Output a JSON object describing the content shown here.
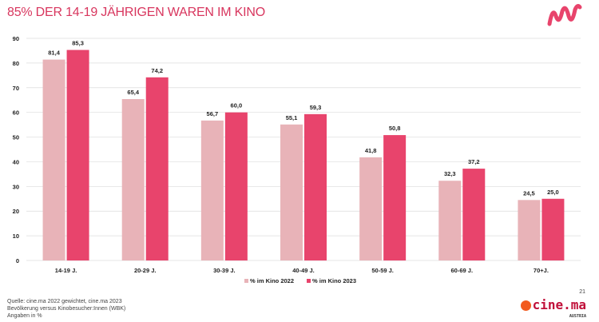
{
  "title": "85% DER 14-19 JÄHRIGEN WAREN IM KINO",
  "chart_data": {
    "type": "bar",
    "categories": [
      "14-19 J.",
      "20-29 J.",
      "30-39 J.",
      "40-49 J.",
      "50-59 J.",
      "60-69 J.",
      "70+J."
    ],
    "series": [
      {
        "name": "% im Kino 2022",
        "values": [
          81.4,
          65.4,
          56.7,
          55.1,
          41.8,
          32.3,
          24.5
        ],
        "labels": [
          "81,4",
          "65,4",
          "56,7",
          "55,1",
          "41,8",
          "32,3",
          "24,5"
        ],
        "color": "#e8b3b8"
      },
      {
        "name": "% im Kino 2023",
        "values": [
          85.3,
          74.2,
          60.0,
          59.3,
          50.8,
          37.2,
          25.0
        ],
        "labels": [
          "85,3",
          "74,2",
          "60,0",
          "59,3",
          "50,8",
          "37,2",
          "25,0"
        ],
        "color": "#e8446c"
      }
    ],
    "yticks": [
      "0",
      "10",
      "20",
      "30",
      "40",
      "50",
      "60",
      "70",
      "80",
      "90"
    ],
    "ylim": [
      0,
      90
    ],
    "grid": true,
    "legend": "bottom"
  },
  "footer": {
    "source": [
      "Quelle: cine.ma 2022 gewichtet, cine.ma 2023",
      "Bevölkerung versus Kinobesucher:Innen (WBK)",
      "Angaben in %"
    ],
    "page": "21",
    "brand": "cine.ma",
    "brand_sub": "AUSTRIA"
  }
}
